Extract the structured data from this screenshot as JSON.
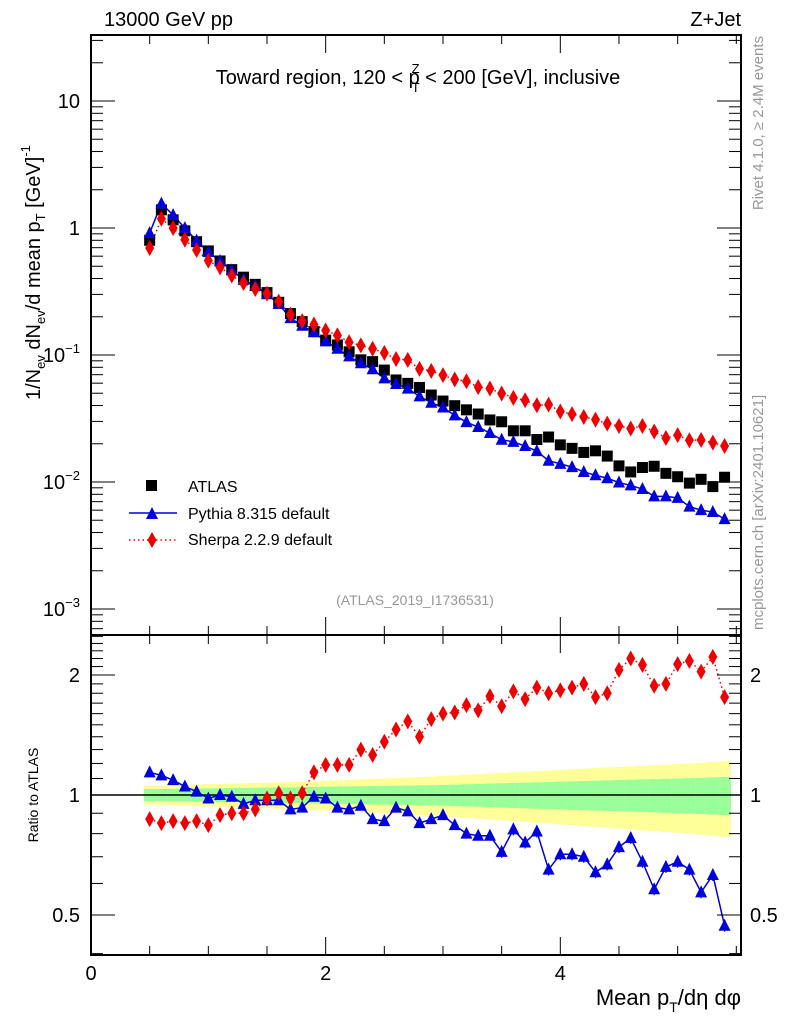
{
  "header": {
    "left_label": "13000 GeV pp",
    "right_label": "Z+Jet"
  },
  "side_labels": {
    "rivet": "Rivet 4.1.0, ≥ 2.4M events",
    "mcplots": "mcplots.cern.ch [arXiv:2401.10621]"
  },
  "chart_data": [
    {
      "type": "scatter",
      "panel": "main",
      "title": "Toward region, 120 < p_T^Z < 200 [GeV], inclusive",
      "title_parts": {
        "pre": "Toward region, 120 < p",
        "sup": "Z",
        "sub": "T",
        "post": " < 200 [GeV], inclusive"
      },
      "ylabel": "1/N_ev dN_ev/d mean p_T [GeV]^-1",
      "ylabel_parts": [
        "1/N",
        "ev",
        " dN",
        "ev",
        "/d mean p",
        "T",
        " [GeV]",
        "-1"
      ],
      "yscale": "log",
      "ylim": [
        0.00075,
        30
      ],
      "xlim": [
        0,
        5.54
      ],
      "y_ticks": [
        {
          "value": 0.001,
          "base": "10",
          "exp": "−3"
        },
        {
          "value": 0.01,
          "base": "10",
          "exp": "−2"
        },
        {
          "value": 0.1,
          "base": "10",
          "exp": "−1"
        },
        {
          "value": 1,
          "base": "1",
          "exp": ""
        },
        {
          "value": 10,
          "base": "10",
          "exp": ""
        }
      ],
      "annotation": "(ATLAS_2019_I1736531)",
      "legend_position": "lower-left",
      "x": [
        0.5,
        0.6,
        0.7,
        0.8,
        0.9,
        1.0,
        1.1,
        1.2,
        1.3,
        1.4,
        1.5,
        1.6,
        1.7,
        1.8,
        1.9,
        2.0,
        2.1,
        2.2,
        2.3,
        2.4,
        2.5,
        2.6,
        2.7,
        2.8,
        2.9,
        3.0,
        3.1,
        3.2,
        3.3,
        3.4,
        3.5,
        3.6,
        3.7,
        3.8,
        3.9,
        4.0,
        4.1,
        4.2,
        4.3,
        4.4,
        4.5,
        4.6,
        4.7,
        4.8,
        4.9,
        5.0,
        5.1,
        5.2,
        5.3,
        5.4
      ],
      "series": [
        {
          "name": "ATLAS",
          "color": "#000000",
          "marker": "square",
          "line": "none",
          "values": [
            0.8,
            1.39,
            1.16,
            0.95,
            0.78,
            0.66,
            0.55,
            0.47,
            0.41,
            0.36,
            0.31,
            0.26,
            0.212,
            0.183,
            0.153,
            0.131,
            0.12,
            0.106,
            0.0916,
            0.0887,
            0.0761,
            0.0636,
            0.0598,
            0.0555,
            0.0484,
            0.0434,
            0.0399,
            0.037,
            0.0343,
            0.0308,
            0.0298,
            0.0253,
            0.0253,
            0.0216,
            0.0226,
            0.0196,
            0.0184,
            0.0171,
            0.0176,
            0.016,
            0.0134,
            0.012,
            0.013,
            0.0133,
            0.0117,
            0.011,
            0.0098,
            0.0105,
            0.0092,
            0.0109
          ]
        },
        {
          "name": "Pythia 8.315 default",
          "color": "#0000dd",
          "marker": "triangle",
          "line": "solid",
          "values": [
            0.912,
            1.557,
            1.264,
            0.998,
            0.796,
            0.647,
            0.55,
            0.465,
            0.39,
            0.349,
            0.301,
            0.252,
            0.195,
            0.17,
            0.151,
            0.128,
            0.112,
            0.0975,
            0.0861,
            0.0772,
            0.0654,
            0.0591,
            0.0544,
            0.0472,
            0.0421,
            0.0386,
            0.0335,
            0.0296,
            0.0271,
            0.0243,
            0.0215,
            0.0207,
            0.0192,
            0.0175,
            0.0147,
            0.0139,
            0.0131,
            0.012,
            0.0113,
            0.0107,
            0.0099,
            0.0094,
            0.0088,
            0.0077,
            0.0077,
            0.0075,
            0.0064,
            0.006,
            0.0058,
            0.0051
          ]
        },
        {
          "name": "Sherpa 2.2.9 default",
          "color": "#ee0000",
          "marker": "diamond",
          "line": "dotted",
          "values": [
            0.696,
            1.182,
            0.998,
            0.808,
            0.671,
            0.554,
            0.49,
            0.423,
            0.369,
            0.331,
            0.304,
            0.263,
            0.208,
            0.185,
            0.174,
            0.156,
            0.143,
            0.126,
            0.119,
            0.112,
            0.104,
            0.0929,
            0.0915,
            0.0777,
            0.075,
            0.0694,
            0.0642,
            0.0622,
            0.0559,
            0.0545,
            0.0498,
            0.046,
            0.044,
            0.0402,
            0.0407,
            0.0359,
            0.0342,
            0.0325,
            0.031,
            0.0288,
            0.0276,
            0.0264,
            0.0276,
            0.025,
            0.0222,
            0.0234,
            0.0213,
            0.0214,
            0.0204,
            0.0192
          ]
        }
      ]
    },
    {
      "type": "scatter",
      "panel": "ratio",
      "ylabel": "Ratio to ATLAS",
      "xlabel": "Mean p_T/dη dφ",
      "xlabel_parts": {
        "pre": "Mean p",
        "sub": "T",
        "post": "/dη dφ"
      },
      "yscale": "log",
      "ylim": [
        0.4,
        2.55
      ],
      "xlim": [
        0,
        5.54
      ],
      "x_ticks": [
        0,
        2,
        4
      ],
      "y_ticks": [
        0.5,
        1,
        2
      ],
      "reference_line": 1,
      "x": [
        0.5,
        0.6,
        0.7,
        0.8,
        0.9,
        1.0,
        1.1,
        1.2,
        1.3,
        1.4,
        1.5,
        1.6,
        1.7,
        1.8,
        1.9,
        2.0,
        2.1,
        2.2,
        2.3,
        2.4,
        2.5,
        2.6,
        2.7,
        2.8,
        2.9,
        3.0,
        3.1,
        3.2,
        3.3,
        3.4,
        3.5,
        3.6,
        3.7,
        3.8,
        3.9,
        4.0,
        4.1,
        4.2,
        4.3,
        4.4,
        4.5,
        4.6,
        4.7,
        4.8,
        4.9,
        5.0,
        5.1,
        5.2,
        5.3,
        5.4
      ],
      "bands": {
        "stat_color": "#99ff99",
        "total_color": "#ffff99",
        "stat_half_width": [
          0.035,
          0.035,
          0.036,
          0.037,
          0.038,
          0.039,
          0.04,
          0.041,
          0.042,
          0.043,
          0.044,
          0.045,
          0.046,
          0.047,
          0.048,
          0.049,
          0.05,
          0.051,
          0.052,
          0.053,
          0.054,
          0.055,
          0.056,
          0.057,
          0.058,
          0.06,
          0.062,
          0.064,
          0.066,
          0.068,
          0.07,
          0.072,
          0.074,
          0.076,
          0.078,
          0.08,
          0.082,
          0.084,
          0.086,
          0.088,
          0.09,
          0.092,
          0.094,
          0.096,
          0.098,
          0.1,
          0.102,
          0.104,
          0.107,
          0.11
        ],
        "total_half_width": [
          0.055,
          0.055,
          0.058,
          0.06,
          0.062,
          0.064,
          0.066,
          0.068,
          0.07,
          0.072,
          0.074,
          0.076,
          0.078,
          0.08,
          0.082,
          0.085,
          0.088,
          0.091,
          0.094,
          0.097,
          0.1,
          0.103,
          0.106,
          0.109,
          0.112,
          0.116,
          0.12,
          0.124,
          0.128,
          0.132,
          0.136,
          0.14,
          0.144,
          0.148,
          0.152,
          0.156,
          0.16,
          0.164,
          0.168,
          0.172,
          0.176,
          0.18,
          0.184,
          0.188,
          0.192,
          0.196,
          0.2,
          0.205,
          0.21,
          0.215
        ]
      },
      "series": [
        {
          "name": "Pythia 8.315 default",
          "color": "#0000dd",
          "marker": "triangle",
          "line": "solid",
          "values": [
            1.14,
            1.12,
            1.09,
            1.05,
            1.02,
            0.98,
            1.0,
            0.99,
            0.95,
            0.97,
            0.97,
            0.97,
            0.92,
            0.93,
            0.99,
            0.98,
            0.93,
            0.92,
            0.94,
            0.87,
            0.86,
            0.93,
            0.91,
            0.85,
            0.87,
            0.89,
            0.84,
            0.8,
            0.79,
            0.79,
            0.72,
            0.82,
            0.76,
            0.81,
            0.65,
            0.71,
            0.71,
            0.7,
            0.64,
            0.67,
            0.74,
            0.78,
            0.68,
            0.58,
            0.66,
            0.68,
            0.65,
            0.57,
            0.63,
            0.47
          ]
        },
        {
          "name": "Sherpa 2.2.9 default",
          "color": "#ee0000",
          "marker": "diamond",
          "line": "dotted",
          "values": [
            0.87,
            0.85,
            0.86,
            0.85,
            0.86,
            0.84,
            0.89,
            0.9,
            0.9,
            0.92,
            0.98,
            1.01,
            0.98,
            1.01,
            1.14,
            1.19,
            1.19,
            1.19,
            1.3,
            1.26,
            1.36,
            1.46,
            1.53,
            1.4,
            1.55,
            1.6,
            1.61,
            1.68,
            1.63,
            1.77,
            1.67,
            1.82,
            1.74,
            1.86,
            1.8,
            1.83,
            1.86,
            1.9,
            1.76,
            1.8,
            2.06,
            2.2,
            2.12,
            1.88,
            1.9,
            2.13,
            2.17,
            2.04,
            2.22,
            1.76
          ]
        }
      ]
    }
  ]
}
